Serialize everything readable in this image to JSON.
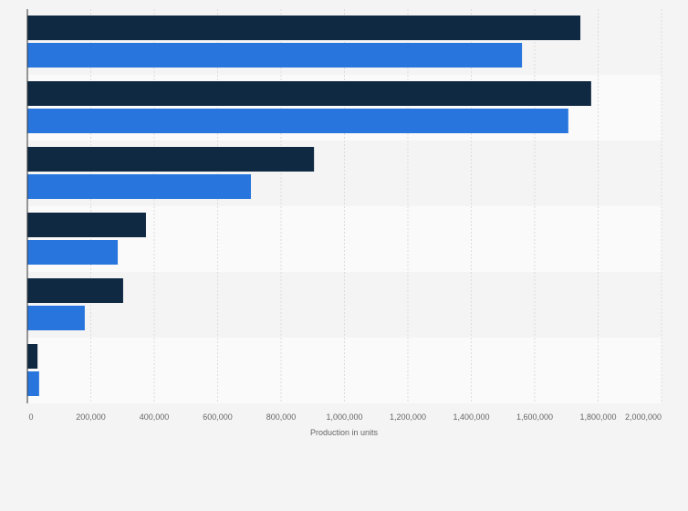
{
  "chart_data": {
    "type": "bar",
    "orientation": "horizontal",
    "title": "",
    "xlabel": "Production in units",
    "ylabel": "",
    "xlim": [
      0,
      2000000
    ],
    "xticks": [
      "0",
      "200,000",
      "400,000",
      "600,000",
      "800,000",
      "1,000,000",
      "1,200,000",
      "1,400,000",
      "1,600,000",
      "1,800,000",
      "2,000,000"
    ],
    "grid": true,
    "legend": "none",
    "categories": [
      "",
      "",
      "",
      "",
      "",
      ""
    ],
    "series": [
      {
        "color": "#0f2942",
        "values": [
          1744000,
          1778000,
          904000,
          374000,
          302000,
          32000
        ]
      },
      {
        "color": "#2876dd",
        "values": [
          1560000,
          1706000,
          705000,
          285000,
          181000,
          37000
        ]
      }
    ]
  }
}
